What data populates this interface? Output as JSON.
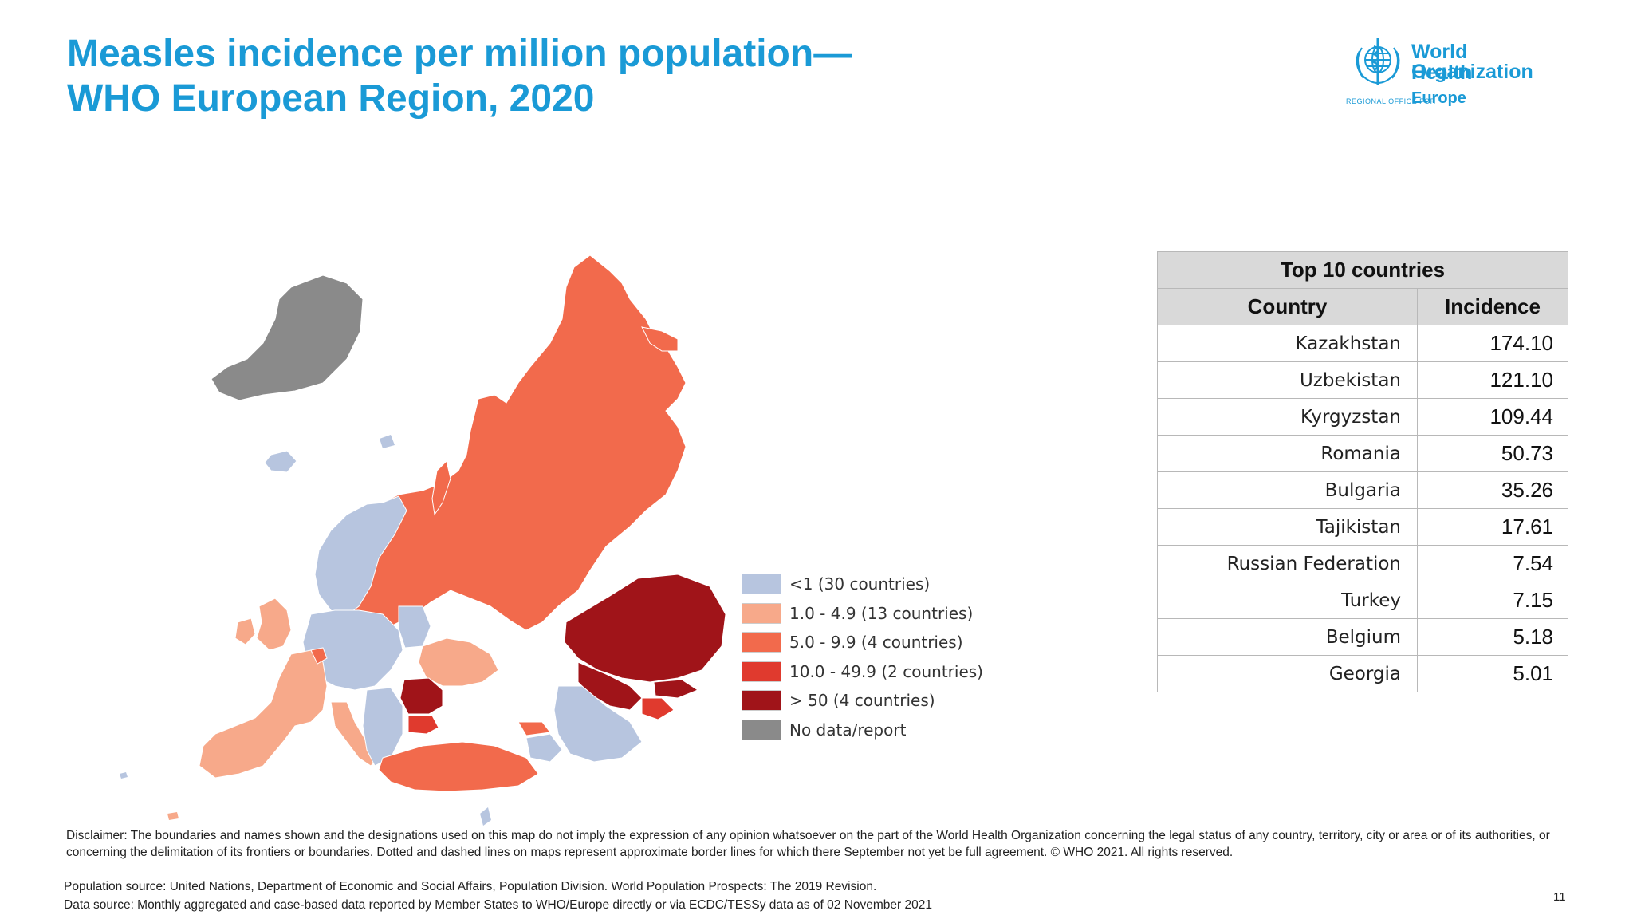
{
  "title": {
    "line1": "Measles incidence per million population—",
    "line2": "WHO European Region, 2020"
  },
  "logo": {
    "line1": "World Health",
    "line2": "Organization",
    "regional": "REGIONAL OFFICE FOR",
    "region": "Europe"
  },
  "colors": {
    "title": "#1a9ad6",
    "lt1": "#b7c5df",
    "c1_4_9": "#f7a98a",
    "c5_9_9": "#f26a4c",
    "c10_49_9": "#e03a2e",
    "c50plus": "#a01419",
    "nodata": "#8a8a8a"
  },
  "legend": [
    {
      "label": "<1 (30 countries)",
      "color": "#b7c5df"
    },
    {
      "label": "1.0 - 4.9 (13 countries)",
      "color": "#f7a98a"
    },
    {
      "label": "5.0 - 9.9 (4 countries)",
      "color": "#f26a4c"
    },
    {
      "label": "10.0 - 49.9 (2 countries)",
      "color": "#e03a2e"
    },
    {
      "label": "> 50 (4 countries)",
      "color": "#a01419"
    },
    {
      "label": "No data/report",
      "color": "#8a8a8a"
    }
  ],
  "table": {
    "caption": "Top 10 countries",
    "headers": [
      "Country",
      "Incidence"
    ],
    "rows": [
      {
        "country": "Kazakhstan",
        "incidence": "174.10"
      },
      {
        "country": "Uzbekistan",
        "incidence": "121.10"
      },
      {
        "country": "Kyrgyzstan",
        "incidence": "109.44"
      },
      {
        "country": "Romania",
        "incidence": "50.73"
      },
      {
        "country": "Bulgaria",
        "incidence": "35.26"
      },
      {
        "country": "Tajikistan",
        "incidence": "17.61"
      },
      {
        "country": "Russian Federation",
        "incidence": "7.54"
      },
      {
        "country": "Turkey",
        "incidence": "7.15"
      },
      {
        "country": "Belgium",
        "incidence": "5.18"
      },
      {
        "country": "Georgia",
        "incidence": "5.01"
      }
    ]
  },
  "disclaimer": "Disclaimer: The boundaries and names shown and the designations used on this map do not imply the expression of any opinion whatsoever on the part of the World Health Organization concerning the legal status of any country, territory, city or area or of its authorities, or concerning the delimitation of its frontiers or boundaries. Dotted and dashed lines on maps represent approximate border lines for which there September not yet be full agreement. © WHO 2021. All rights reserved.",
  "population_source": "Population source: United Nations, Department of Economic and Social Affairs, Population Division. World Population Prospects: The 2019 Revision.",
  "data_source": "Data source: Monthly aggregated and case-based data reported by Member States to WHO/Europe directly or via ECDC/TESSy data as of 02 November 2021",
  "page_number": "11"
}
